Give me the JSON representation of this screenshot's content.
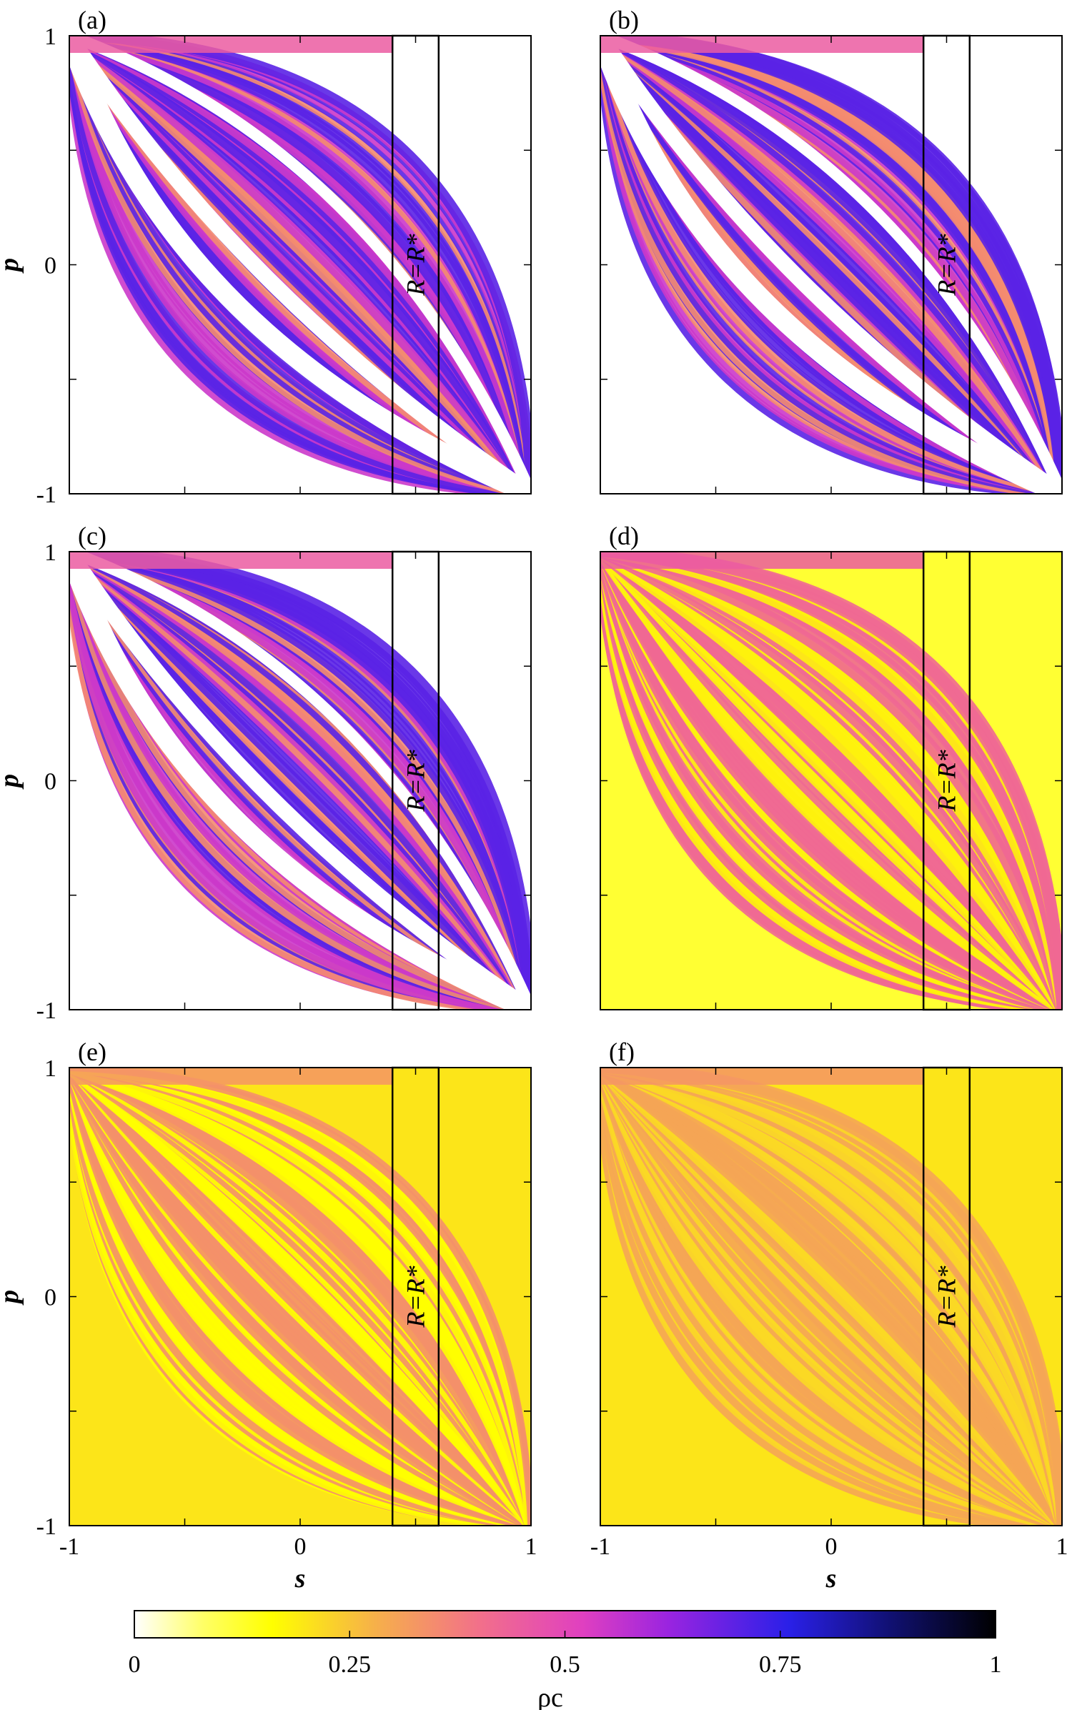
{
  "chart_data": [
    {
      "type": "heatmap",
      "panel_label": "(a)",
      "xlabel": "",
      "ylabel": "p",
      "xlim": [
        -1,
        1
      ],
      "ylim": [
        -1,
        1
      ],
      "x_ticks": [],
      "y_ticks": [
        "1",
        "0",
        "-1"
      ],
      "region_label": "R=R*",
      "region_s": [
        0.4,
        0.6
      ],
      "level": 0.62
    },
    {
      "type": "heatmap",
      "panel_label": "(b)",
      "xlabel": "",
      "ylabel": "",
      "xlim": [
        -1,
        1
      ],
      "ylim": [
        -1,
        1
      ],
      "x_ticks": [],
      "y_ticks": [],
      "region_label": "R=R*",
      "region_s": [
        0.4,
        0.6
      ],
      "level": 0.62
    },
    {
      "type": "heatmap",
      "panel_label": "(c)",
      "xlabel": "",
      "ylabel": "p",
      "xlim": [
        -1,
        1
      ],
      "ylim": [
        -1,
        1
      ],
      "x_ticks": [],
      "y_ticks": [
        "1",
        "0",
        "-1"
      ],
      "region_label": "R=R*",
      "region_s": [
        0.4,
        0.6
      ],
      "level": 0.55
    },
    {
      "type": "heatmap",
      "panel_label": "(d)",
      "xlabel": "",
      "ylabel": "",
      "xlim": [
        -1,
        1
      ],
      "ylim": [
        -1,
        1
      ],
      "x_ticks": [],
      "y_ticks": [],
      "region_label": "R=R*",
      "region_s": [
        0.4,
        0.6
      ],
      "level": 0.38
    },
    {
      "type": "heatmap",
      "panel_label": "(e)",
      "xlabel": "s",
      "ylabel": "p",
      "xlim": [
        -1,
        1
      ],
      "ylim": [
        -1,
        1
      ],
      "x_ticks": [
        "-1",
        "0",
        "1"
      ],
      "y_ticks": [
        "1",
        "0",
        "-1"
      ],
      "region_label": "R=R*",
      "region_s": [
        0.4,
        0.6
      ],
      "level": 0.27
    },
    {
      "type": "heatmap",
      "panel_label": "(f)",
      "xlabel": "s",
      "ylabel": "",
      "xlim": [
        -1,
        1
      ],
      "ylim": [
        -1,
        1
      ],
      "x_ticks": [
        "-1",
        "0",
        "1"
      ],
      "y_ticks": [],
      "region_label": "R=R*",
      "region_s": [
        0.4,
        0.6
      ],
      "level": 0.25
    }
  ],
  "colorbar": {
    "label": "ρc",
    "range": [
      0,
      1
    ],
    "ticks": [
      "0",
      "0.25",
      "0.5",
      "0.75",
      "1"
    ],
    "tick_values": [
      0,
      0.25,
      0.5,
      0.75,
      1
    ],
    "colors": [
      "#ffffff",
      "#ffff00",
      "#f6b04a",
      "#f2708a",
      "#e040c0",
      "#8a20e0",
      "#2020e0",
      "#000000"
    ]
  }
}
